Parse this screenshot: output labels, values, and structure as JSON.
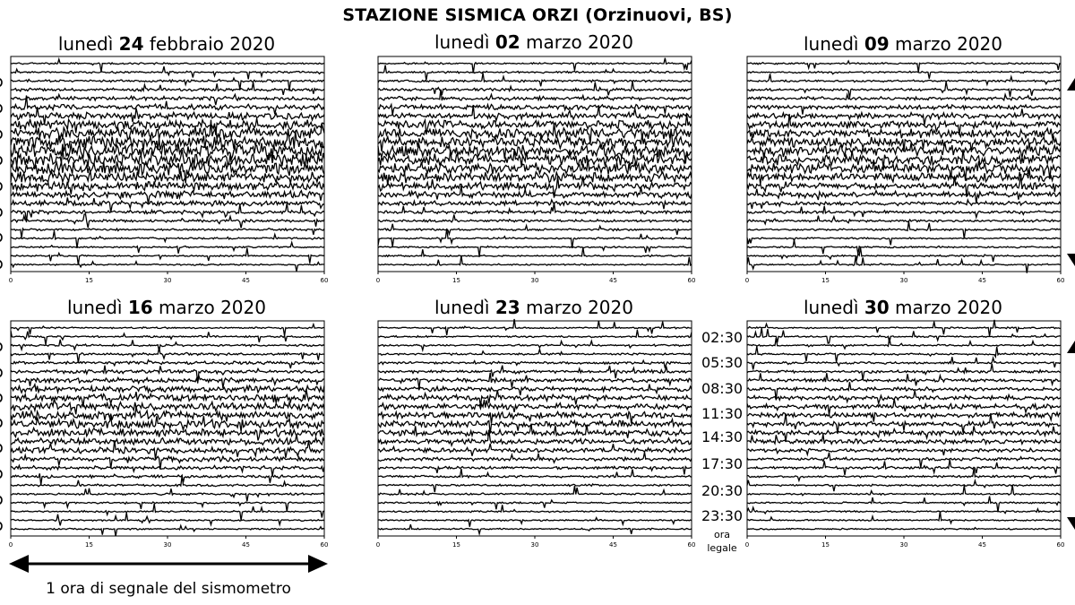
{
  "title": "STAZIONE SISMICA ORZI (Orzinuovi, BS)",
  "panels": [
    {
      "day": "lunedì",
      "date": "24",
      "rest": "febbraio 2020",
      "activity": 1.0,
      "seed": 11
    },
    {
      "day": "lunedì",
      "date": "02",
      "rest": "marzo 2020",
      "activity": 0.85,
      "seed": 23
    },
    {
      "day": "lunedì",
      "date": "09",
      "rest": "marzo 2020",
      "activity": 0.7,
      "seed": 37
    },
    {
      "day": "lunedì",
      "date": "16",
      "rest": "marzo 2020",
      "activity": 0.6,
      "seed": 41
    },
    {
      "day": "lunedì",
      "date": "23",
      "rest": "marzo 2020",
      "activity": 0.4,
      "seed": 53
    },
    {
      "day": "lunedì",
      "date": "30",
      "rest": "marzo 2020",
      "activity": 0.3,
      "seed": 67
    }
  ],
  "x_ticks": [
    "0",
    "15",
    "30",
    "45",
    "60"
  ],
  "hour_labels": [
    "02:30",
    "05:30",
    "08:30",
    "11:30",
    "14:30",
    "17:30",
    "20:30",
    "23:30"
  ],
  "hour_note_1": "ora",
  "hour_note_2": "legale",
  "caption": "1 ora di segnale del sismometro",
  "chart_data": {
    "type": "line",
    "title": "STAZIONE SISMICA ORZI (Orzinuovi, BS)",
    "xlabel": "1 ora di segnale del sismometro",
    "xlim": [
      0,
      60
    ],
    "x_ticks": [
      0,
      15,
      30,
      45,
      60
    ],
    "y_tick_labels": [
      "02:30",
      "05:30",
      "08:30",
      "11:30",
      "14:30",
      "17:30",
      "20:30",
      "23:30"
    ],
    "y_tick_note": "ora legale",
    "traces_per_panel": 24,
    "grid": false,
    "panels": [
      {
        "title": "lunedì 24 febbraio 2020"
      },
      {
        "title": "lunedì 02 marzo 2020"
      },
      {
        "title": "lunedì 09 marzo 2020"
      },
      {
        "title": "lunedì 16 marzo 2020"
      },
      {
        "title": "lunedì 23 marzo 2020"
      },
      {
        "title": "lunedì 30 marzo 2020"
      }
    ]
  }
}
